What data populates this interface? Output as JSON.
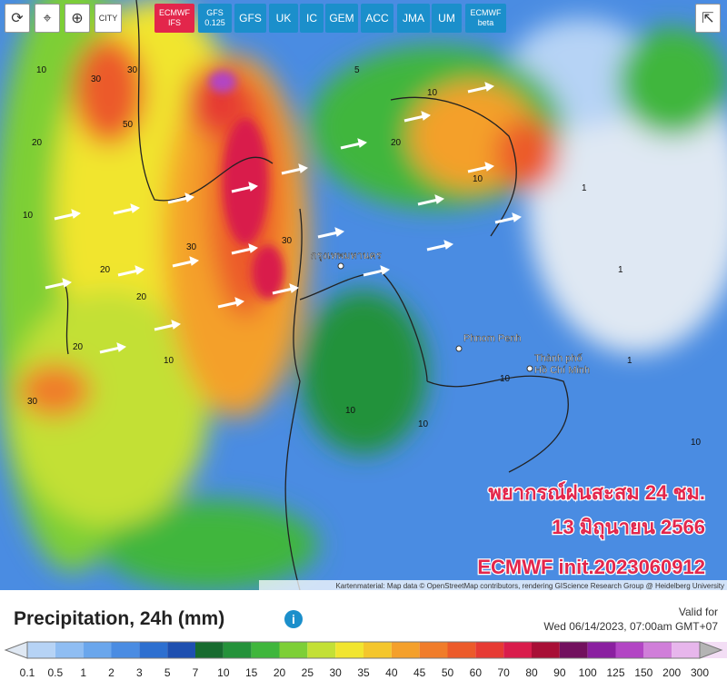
{
  "toolbar": {
    "city": "CITY",
    "models": [
      "ECMWF IFS",
      "GFS 0.125",
      "GFS",
      "UK",
      "IC",
      "GEM",
      "ACC",
      "JMA",
      "UM",
      "ECMWF beta"
    ],
    "active": "ECMWF IFS"
  },
  "map": {
    "places": [
      "กรุงเทพมหานคร",
      "Phnom Penh",
      "Thành phố Hồ Chí Minh"
    ],
    "contour_labels": [
      "30",
      "30",
      "50",
      "20",
      "20",
      "10",
      "10",
      "30",
      "30",
      "20",
      "20",
      "10",
      "10",
      "30",
      "10",
      "10",
      "1",
      "1",
      "10",
      "20",
      "1",
      "10",
      "5",
      "10"
    ],
    "overlay": [
      "พยากรณ์ฝนสะสม 24 ชม.",
      "13 มิถุนายน 2566",
      "ECMWF init.2023060912"
    ],
    "attribution": "Kartenmaterial: Map data © OpenStreetMap contributors, rendering GIScience Research Group @ Heidelberg University"
  },
  "legend": {
    "title": "Precipitation, 24h (mm)",
    "valid_label": "Valid for",
    "valid_time": "Wed 06/14/2023, 07:00am GMT+07",
    "scale": [
      "0.1",
      "0.5",
      "1",
      "2",
      "3",
      "5",
      "7",
      "10",
      "15",
      "20",
      "25",
      "30",
      "35",
      "40",
      "45",
      "50",
      "60",
      "70",
      "80",
      "90",
      "100",
      "125",
      "150",
      "200",
      "300"
    ],
    "colors": [
      "#dfe8f3",
      "#b6d3f5",
      "#8fbdf2",
      "#6aa6ec",
      "#4a8ce2",
      "#2d6fd0",
      "#1e4fb0",
      "#176b2f",
      "#24923a",
      "#3fb63c",
      "#7dcf36",
      "#c3e035",
      "#f1e52f",
      "#f4c62c",
      "#f4a02b",
      "#f07c2a",
      "#ec5a2a",
      "#e63a33",
      "#d91c4b",
      "#a80f36",
      "#72105e",
      "#8a1fa0",
      "#b245c4",
      "#d07ed9",
      "#e7b6ec",
      "#f3def5",
      "#b4b4b4"
    ]
  }
}
